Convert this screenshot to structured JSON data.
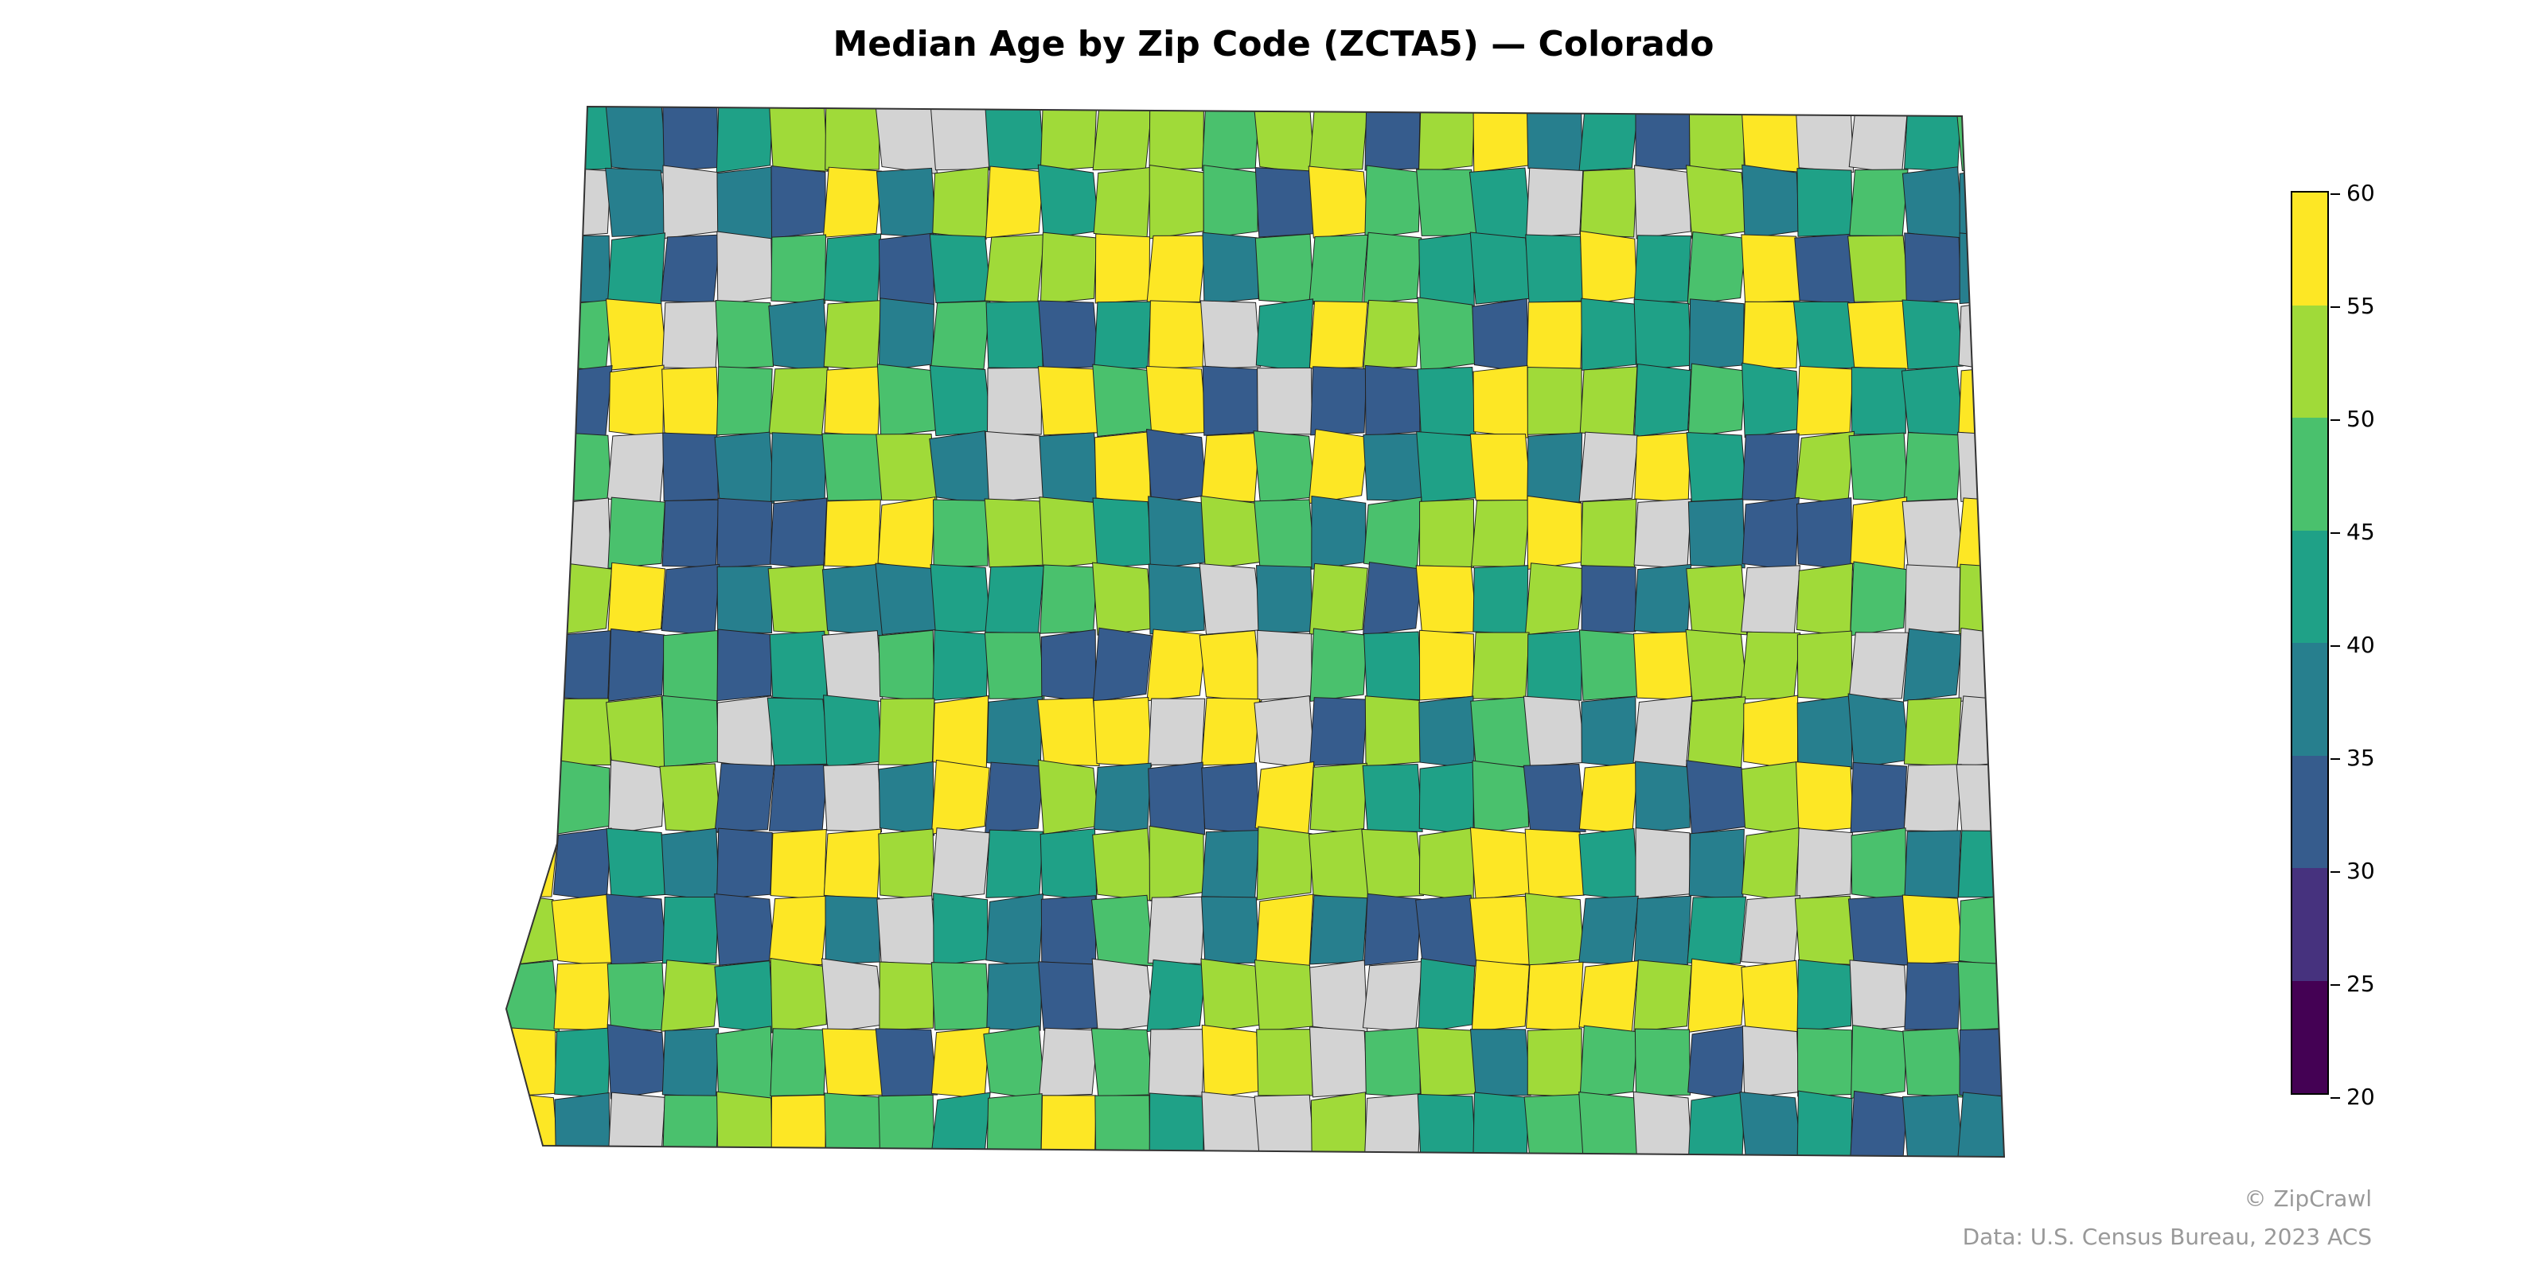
{
  "title": "Median Age by Zip Code (ZCTA5) — Colorado",
  "colorbar": {
    "ticks": [
      "60",
      "55",
      "50",
      "45",
      "40",
      "35",
      "30",
      "25",
      "20"
    ],
    "bins": [
      {
        "range": "55–60",
        "color": "#fde725"
      },
      {
        "range": "50–55",
        "color": "#a0da39"
      },
      {
        "range": "45–50",
        "color": "#4ac16d"
      },
      {
        "range": "40–45",
        "color": "#1fa187"
      },
      {
        "range": "35–40",
        "color": "#277f8e"
      },
      {
        "range": "30–35",
        "color": "#365c8d"
      },
      {
        "range": "25–30",
        "color": "#46327e"
      },
      {
        "range": "20–25",
        "color": "#440154"
      }
    ],
    "nodata_color": "#d3d3d3"
  },
  "credits": {
    "copyright": "© ZipCrawl",
    "source": "Data: U.S. Census Bureau, 2023 ACS"
  }
}
